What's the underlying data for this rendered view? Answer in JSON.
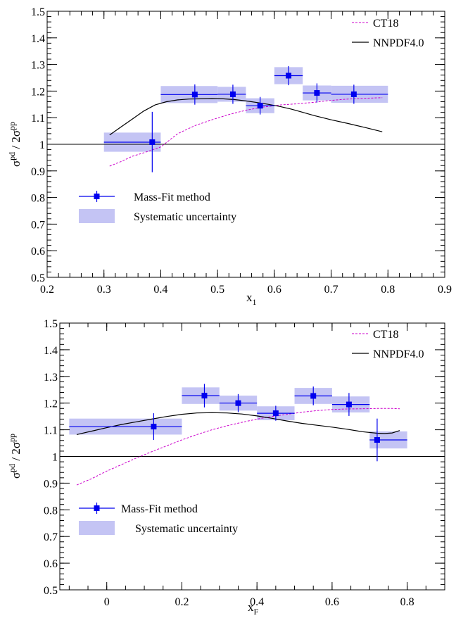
{
  "figure": {
    "colors": {
      "data": "#0000ee",
      "band": "#c4c4f4",
      "ct18": "#cc00cc",
      "nnpdf": "#000000"
    }
  },
  "chart_data": [
    {
      "type": "scatter",
      "xlabel": "x",
      "xlabel_sub": "1",
      "ylabel": "σ",
      "ylabel_sup1": "pd",
      "ylabel_mid": " / 2σ",
      "ylabel_sup2": "pp",
      "xlim": [
        0.2,
        0.9
      ],
      "ylim": [
        0.5,
        1.5
      ],
      "xticks": [
        0.2,
        0.3,
        0.4,
        0.5,
        0.6,
        0.7,
        0.8,
        0.9
      ],
      "xtick_labels": [
        "0.2",
        "0.3",
        "0.4",
        "0.5",
        "0.6",
        "0.7",
        "0.8",
        "0.9"
      ],
      "yticks": [
        0.5,
        0.6,
        0.7,
        0.8,
        0.9,
        1.0,
        1.1,
        1.2,
        1.3,
        1.4,
        1.5
      ],
      "ytick_labels": [
        "0.5",
        "0.6",
        "0.7",
        "0.8",
        "0.9",
        "1",
        "1.1",
        "1.2",
        "1.3",
        "1.4",
        "1.5"
      ],
      "reference_line": 1.0,
      "data_series": {
        "name": "Mass-Fit method",
        "points": [
          {
            "x": 0.385,
            "y": 1.008,
            "xlo": 0.3,
            "xhi": 0.4,
            "ylo": 0.895,
            "yhi": 1.122,
            "syslo": 0.972,
            "syshi": 1.044
          },
          {
            "x": 0.46,
            "y": 1.187,
            "xlo": 0.4,
            "xhi": 0.5,
            "ylo": 1.149,
            "yhi": 1.225,
            "syslo": 1.155,
            "syshi": 1.219
          },
          {
            "x": 0.527,
            "y": 1.188,
            "xlo": 0.5,
            "xhi": 0.55,
            "ylo": 1.152,
            "yhi": 1.224,
            "syslo": 1.16,
            "syshi": 1.216
          },
          {
            "x": 0.575,
            "y": 1.145,
            "xlo": 0.55,
            "xhi": 0.6,
            "ylo": 1.112,
            "yhi": 1.178,
            "syslo": 1.117,
            "syshi": 1.173
          },
          {
            "x": 0.625,
            "y": 1.258,
            "xlo": 0.6,
            "xhi": 0.65,
            "ylo": 1.222,
            "yhi": 1.294,
            "syslo": 1.226,
            "syshi": 1.29
          },
          {
            "x": 0.675,
            "y": 1.193,
            "xlo": 0.65,
            "xhi": 0.7,
            "ylo": 1.157,
            "yhi": 1.229,
            "syslo": 1.165,
            "syshi": 1.221
          },
          {
            "x": 0.74,
            "y": 1.188,
            "xlo": 0.7,
            "xhi": 0.8,
            "ylo": 1.152,
            "yhi": 1.224,
            "syslo": 1.156,
            "syshi": 1.22
          }
        ]
      },
      "systematic_label": "Systematic uncertainty",
      "curves": [
        {
          "name": "CT18",
          "x": [
            0.31,
            0.33,
            0.35,
            0.37,
            0.4,
            0.43,
            0.46,
            0.49,
            0.52,
            0.55,
            0.58,
            0.61,
            0.64,
            0.67,
            0.7,
            0.73,
            0.76,
            0.79
          ],
          "y": [
            0.918,
            0.935,
            0.955,
            0.968,
            0.99,
            1.04,
            1.07,
            1.092,
            1.112,
            1.128,
            1.14,
            1.148,
            1.152,
            1.158,
            1.165,
            1.17,
            1.173,
            1.175
          ]
        },
        {
          "name": "NNPDF4.0",
          "x": [
            0.31,
            0.33,
            0.35,
            0.37,
            0.39,
            0.41,
            0.43,
            0.45,
            0.47,
            0.49,
            0.51,
            0.53,
            0.55,
            0.57,
            0.59,
            0.61,
            0.63,
            0.65,
            0.67,
            0.7,
            0.73,
            0.76,
            0.79
          ],
          "y": [
            1.035,
            1.065,
            1.095,
            1.125,
            1.148,
            1.16,
            1.167,
            1.17,
            1.171,
            1.172,
            1.171,
            1.168,
            1.163,
            1.157,
            1.15,
            1.142,
            1.132,
            1.12,
            1.108,
            1.092,
            1.078,
            1.063,
            1.047
          ]
        }
      ]
    },
    {
      "type": "scatter",
      "xlabel": "x",
      "xlabel_sub": "F",
      "ylabel": "σ",
      "ylabel_sup1": "pd",
      "ylabel_mid": " / 2σ",
      "ylabel_sup2": "pp",
      "xlim": [
        -0.125,
        0.9
      ],
      "ylim": [
        0.5,
        1.5
      ],
      "xticks": [
        0.0,
        0.2,
        0.4,
        0.6,
        0.8
      ],
      "xtick_labels": [
        "0",
        "0.2",
        "0.4",
        "0.6",
        "0.8"
      ],
      "yticks": [
        0.5,
        0.6,
        0.7,
        0.8,
        0.9,
        1.0,
        1.1,
        1.2,
        1.3,
        1.4,
        1.5
      ],
      "ytick_labels": [
        "0.5",
        "0.6",
        "0.7",
        "0.8",
        "0.9",
        "1",
        "1.1",
        "1.2",
        "1.3",
        "1.4",
        "1.5"
      ],
      "reference_line": 1.0,
      "data_series": {
        "name": "Mass-Fit method",
        "points": [
          {
            "x": 0.125,
            "y": 1.112,
            "xlo": -0.1,
            "xhi": 0.2,
            "ylo": 1.062,
            "yhi": 1.162,
            "syslo": 1.082,
            "syshi": 1.142
          },
          {
            "x": 0.26,
            "y": 1.228,
            "xlo": 0.2,
            "xhi": 0.3,
            "ylo": 1.184,
            "yhi": 1.272,
            "syslo": 1.197,
            "syshi": 1.259
          },
          {
            "x": 0.35,
            "y": 1.2,
            "xlo": 0.3,
            "xhi": 0.4,
            "ylo": 1.166,
            "yhi": 1.234,
            "syslo": 1.172,
            "syshi": 1.228
          },
          {
            "x": 0.45,
            "y": 1.162,
            "xlo": 0.4,
            "xhi": 0.5,
            "ylo": 1.134,
            "yhi": 1.19,
            "syslo": 1.136,
            "syshi": 1.188
          },
          {
            "x": 0.55,
            "y": 1.227,
            "xlo": 0.5,
            "xhi": 0.6,
            "ylo": 1.192,
            "yhi": 1.262,
            "syslo": 1.197,
            "syshi": 1.257
          },
          {
            "x": 0.645,
            "y": 1.195,
            "xlo": 0.6,
            "xhi": 0.7,
            "ylo": 1.152,
            "yhi": 1.238,
            "syslo": 1.165,
            "syshi": 1.225
          },
          {
            "x": 0.72,
            "y": 1.062,
            "xlo": 0.7,
            "xhi": 0.8,
            "ylo": 0.982,
            "yhi": 1.142,
            "syslo": 1.03,
            "syshi": 1.094
          }
        ]
      },
      "systematic_label": "Systematic uncertainty",
      "curves": [
        {
          "name": "CT18",
          "x": [
            -0.08,
            -0.04,
            0.0,
            0.04,
            0.08,
            0.12,
            0.16,
            0.2,
            0.24,
            0.28,
            0.32,
            0.36,
            0.4,
            0.44,
            0.48,
            0.52,
            0.56,
            0.6,
            0.64,
            0.68,
            0.72,
            0.76,
            0.78
          ],
          "y": [
            0.893,
            0.917,
            0.945,
            0.97,
            0.995,
            1.018,
            1.04,
            1.062,
            1.082,
            1.1,
            1.115,
            1.128,
            1.14,
            1.15,
            1.158,
            1.166,
            1.172,
            1.176,
            1.178,
            1.179,
            1.18,
            1.18,
            1.179
          ]
        },
        {
          "name": "NNPDF4.0",
          "x": [
            -0.08,
            -0.04,
            0.0,
            0.04,
            0.08,
            0.12,
            0.16,
            0.2,
            0.24,
            0.28,
            0.32,
            0.36,
            0.4,
            0.44,
            0.48,
            0.52,
            0.56,
            0.6,
            0.64,
            0.68,
            0.72,
            0.74,
            0.76,
            0.78
          ],
          "y": [
            1.082,
            1.095,
            1.108,
            1.12,
            1.13,
            1.14,
            1.15,
            1.158,
            1.163,
            1.164,
            1.163,
            1.159,
            1.152,
            1.143,
            1.133,
            1.124,
            1.117,
            1.11,
            1.102,
            1.093,
            1.087,
            1.086,
            1.088,
            1.097
          ]
        }
      ]
    }
  ]
}
